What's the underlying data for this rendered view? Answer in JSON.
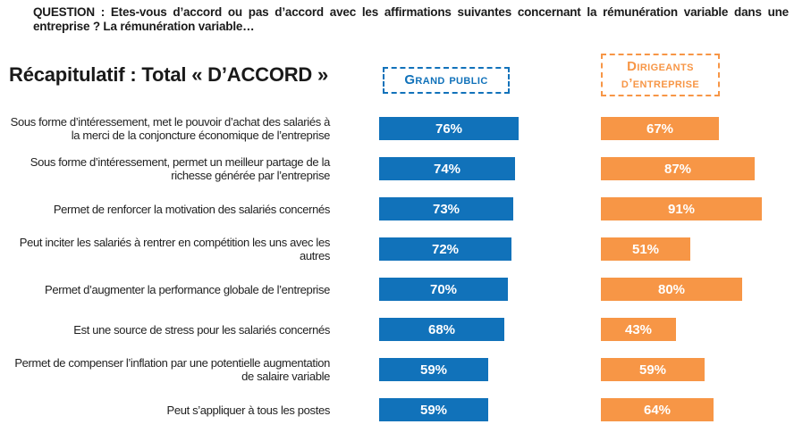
{
  "header": {
    "question": "QUESTION : Etes-vous d’accord ou pas d’accord avec les affirmations suivantes concernant la rémunération variable dans une entreprise ? La rémunération variable…",
    "title": "Récapitulatif : Total « D’ACCORD »"
  },
  "legend": {
    "grand_public": "Grand public",
    "dirigeants": "Dirigeants d’entreprise"
  },
  "colors": {
    "grand_public": "#1172BA",
    "dirigeants": "#F79646",
    "text": "#1A1A1A",
    "value_label": "#FFFFFF"
  },
  "chart_data": {
    "type": "bar",
    "orientation": "horizontal",
    "title": "Récapitulatif : Total « D’ACCORD »",
    "unit": "%",
    "xlim": [
      0,
      100
    ],
    "grid": false,
    "value_labels_shown": true,
    "legend_position": "top",
    "categories": [
      "Sous forme d’intéressement, met le pouvoir d’achat des salariés à la merci de la conjoncture économique de l’entreprise",
      "Sous forme d’intéressement, permet un meilleur partage de la richesse générée par l’entreprise",
      "Permet de renforcer la motivation des salariés concernés",
      "Peut inciter les salariés à rentrer en compétition les uns avec les autres",
      "Permet d’augmenter la performance globale de l’entreprise",
      "Est une source de stress pour les salariés concernés",
      "Permet de compenser l’inflation par une potentielle augmentation de salaire variable",
      "Peut s’appliquer à tous les postes"
    ],
    "series": [
      {
        "name": "Grand public",
        "color": "#1172BA",
        "values": [
          76,
          74,
          73,
          72,
          70,
          68,
          59,
          59
        ]
      },
      {
        "name": "Dirigeants d’entreprise",
        "color": "#F79646",
        "values": [
          67,
          87,
          91,
          51,
          80,
          43,
          59,
          64
        ]
      }
    ]
  }
}
